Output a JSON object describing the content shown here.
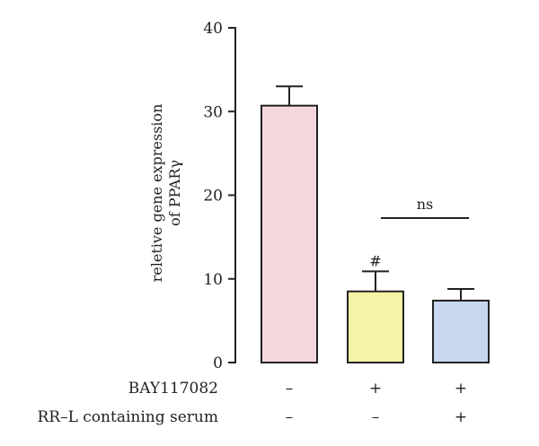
{
  "chart_data": {
    "type": "bar",
    "ylabel_line1": "reletive gene expression",
    "ylabel_line2": "of PPARγ",
    "ylim": [
      0,
      40
    ],
    "yticks": [
      "0",
      "10",
      "20",
      "30",
      "40"
    ],
    "groups": [
      {
        "value": 30.7,
        "error": 2.3,
        "color": "#f4d7dc",
        "annotation": ""
      },
      {
        "value": 8.5,
        "error": 2.4,
        "color": "#f6f3a6",
        "annotation": "#"
      },
      {
        "value": 7.4,
        "error": 1.4,
        "color": "#c6d7ee",
        "annotation": ""
      }
    ],
    "conditions": [
      {
        "label": "BAY117082",
        "symbols": [
          "–",
          "+",
          "+"
        ]
      },
      {
        "label": "RR–L containing serum",
        "symbols": [
          "–",
          "–",
          "+"
        ]
      }
    ],
    "comparison": {
      "between": [
        1,
        2
      ],
      "label": "ns"
    }
  }
}
